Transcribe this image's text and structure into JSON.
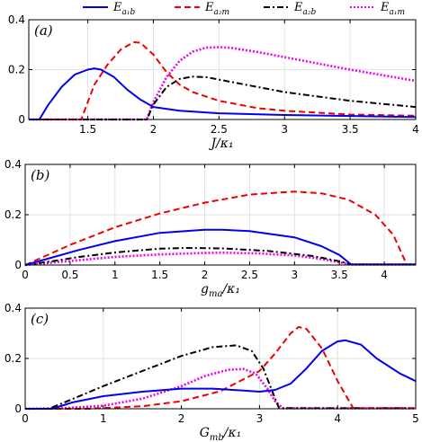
{
  "legend": [
    {
      "key": "Ea1b",
      "label": "E",
      "sub": "a₁b",
      "color": "#0000ee",
      "dash": "solid"
    },
    {
      "key": "Ea2m",
      "label": "E",
      "sub": "a₂m",
      "color": "#ee0000",
      "dash": "dashed"
    },
    {
      "key": "Ea2b",
      "label": "E",
      "sub": "a₂b",
      "color": "#000000",
      "dash": "dashdot"
    },
    {
      "key": "Ea1m",
      "label": "E",
      "sub": "a₁m",
      "color": "#ee00ee",
      "dash": "dotted"
    }
  ],
  "chart_data": [
    {
      "type": "line",
      "panel_label": "(a)",
      "xlabel": "J/κ₁",
      "xlim": [
        1.05,
        4.0
      ],
      "ylim": [
        0,
        0.4
      ],
      "xticks": [
        "1.5",
        "2",
        "2.5",
        "3",
        "3.5",
        "4"
      ],
      "xtick_values": [
        1.5,
        2,
        2.5,
        3,
        3.5,
        4
      ],
      "yticks": [
        "0",
        "0.2",
        "0.4"
      ],
      "ytick_values": [
        0,
        0.2,
        0.4
      ],
      "grid": true,
      "series": [
        {
          "name": "Ea1b",
          "x": [
            1.05,
            1.13,
            1.2,
            1.3,
            1.4,
            1.5,
            1.55,
            1.6,
            1.7,
            1.8,
            1.9,
            2.0,
            2.2,
            2.5,
            3.0,
            3.5,
            4.0
          ],
          "y": [
            0,
            0,
            0.06,
            0.13,
            0.18,
            0.2,
            0.205,
            0.2,
            0.17,
            0.12,
            0.08,
            0.05,
            0.035,
            0.025,
            0.018,
            0.014,
            0.01
          ]
        },
        {
          "name": "Ea2m",
          "x": [
            1.05,
            1.45,
            1.55,
            1.65,
            1.75,
            1.85,
            1.9,
            2.0,
            2.1,
            2.2,
            2.3,
            2.5,
            2.8,
            3.0,
            3.5,
            4.0
          ],
          "y": [
            0,
            0,
            0.14,
            0.22,
            0.28,
            0.31,
            0.308,
            0.26,
            0.19,
            0.14,
            0.11,
            0.075,
            0.045,
            0.035,
            0.02,
            0.015
          ]
        },
        {
          "name": "Ea2b",
          "x": [
            1.05,
            1.95,
            2.0,
            2.1,
            2.2,
            2.3,
            2.4,
            2.5,
            2.7,
            3.0,
            3.5,
            4.0
          ],
          "y": [
            0,
            0,
            0.06,
            0.13,
            0.163,
            0.172,
            0.17,
            0.16,
            0.14,
            0.11,
            0.075,
            0.05
          ]
        },
        {
          "name": "Ea1m",
          "x": [
            1.05,
            1.95,
            2.0,
            2.1,
            2.2,
            2.3,
            2.4,
            2.5,
            2.6,
            2.8,
            3.0,
            3.5,
            4.0
          ],
          "y": [
            0,
            0,
            0.07,
            0.17,
            0.235,
            0.272,
            0.288,
            0.29,
            0.287,
            0.27,
            0.25,
            0.2,
            0.155
          ]
        }
      ]
    },
    {
      "type": "line",
      "panel_label": "(b)",
      "xlabel": "g_ma/κ₁",
      "xlim": [
        0,
        4.35
      ],
      "ylim": [
        0,
        0.4
      ],
      "xticks": [
        "0",
        "0.5",
        "1",
        "1.5",
        "2",
        "2.5",
        "3",
        "3.5",
        "4"
      ],
      "xtick_values": [
        0,
        0.5,
        1,
        1.5,
        2,
        2.5,
        3,
        3.5,
        4
      ],
      "yticks": [
        "0",
        "0.2",
        "0.4"
      ],
      "ytick_values": [
        0,
        0.2,
        0.4
      ],
      "grid": true,
      "series": [
        {
          "name": "Ea1b",
          "x": [
            0,
            0.3,
            0.6,
            1.0,
            1.5,
            2.0,
            2.2,
            2.5,
            3.0,
            3.3,
            3.5,
            3.63,
            4.35
          ],
          "y": [
            0,
            0.03,
            0.06,
            0.095,
            0.128,
            0.14,
            0.14,
            0.135,
            0.11,
            0.075,
            0.04,
            0.002,
            0.002
          ]
        },
        {
          "name": "Ea2m",
          "x": [
            0,
            0.5,
            1.0,
            1.5,
            2.0,
            2.5,
            3.0,
            3.3,
            3.6,
            3.9,
            4.1,
            4.25,
            4.35
          ],
          "y": [
            0,
            0.08,
            0.15,
            0.205,
            0.248,
            0.28,
            0.292,
            0.285,
            0.26,
            0.2,
            0.12,
            0.002,
            0.002
          ]
        },
        {
          "name": "Ea2b",
          "x": [
            0,
            0.3,
            0.6,
            1.0,
            1.5,
            1.8,
            2.2,
            2.7,
            3.2,
            3.5,
            3.63,
            4.35
          ],
          "y": [
            0,
            0.015,
            0.032,
            0.05,
            0.065,
            0.068,
            0.066,
            0.056,
            0.036,
            0.015,
            0.002,
            0.002
          ]
        },
        {
          "name": "Ea1m",
          "x": [
            0,
            0.5,
            1.0,
            1.5,
            2.0,
            2.2,
            2.6,
            3.0,
            3.3,
            3.6,
            3.63,
            4.35
          ],
          "y": [
            0,
            0.016,
            0.032,
            0.042,
            0.048,
            0.049,
            0.046,
            0.038,
            0.024,
            0.004,
            0.002,
            0.002
          ]
        }
      ]
    },
    {
      "type": "line",
      "panel_label": "(c)",
      "xlabel": "G_mb/κ₁",
      "xlim": [
        0,
        5
      ],
      "ylim": [
        0,
        0.4
      ],
      "xticks": [
        "0",
        "1",
        "2",
        "3",
        "4",
        "5"
      ],
      "xtick_values": [
        0,
        1,
        2,
        3,
        4,
        5
      ],
      "yticks": [
        "0",
        "0.2",
        "0.4"
      ],
      "ytick_values": [
        0,
        0.2,
        0.4
      ],
      "grid": true,
      "series": [
        {
          "name": "Ea1b",
          "x": [
            0,
            0.35,
            0.6,
            1.0,
            1.5,
            2.0,
            2.4,
            2.8,
            3.0,
            3.2,
            3.4,
            3.6,
            3.8,
            4.0,
            4.1,
            4.3,
            4.5,
            4.8,
            5.0
          ],
          "y": [
            0,
            0,
            0.025,
            0.05,
            0.068,
            0.08,
            0.08,
            0.072,
            0.068,
            0.075,
            0.1,
            0.16,
            0.23,
            0.268,
            0.272,
            0.255,
            0.2,
            0.14,
            0.11
          ]
        },
        {
          "name": "Ea2m",
          "x": [
            0,
            0.8,
            1.0,
            1.5,
            2.0,
            2.5,
            3.0,
            3.2,
            3.4,
            3.5,
            3.6,
            3.8,
            4.0,
            4.2,
            5.0
          ],
          "y": [
            0,
            0,
            0.003,
            0.01,
            0.03,
            0.07,
            0.15,
            0.22,
            0.3,
            0.325,
            0.318,
            0.24,
            0.11,
            0.002,
            0.002
          ]
        },
        {
          "name": "Ea2b",
          "x": [
            0,
            0.3,
            0.5,
            1.0,
            1.5,
            2.0,
            2.4,
            2.7,
            2.9,
            3.05,
            3.15,
            3.25,
            5.0
          ],
          "y": [
            0,
            0,
            0.025,
            0.09,
            0.15,
            0.21,
            0.245,
            0.252,
            0.23,
            0.16,
            0.08,
            0.002,
            0.002
          ]
        },
        {
          "name": "Ea1m",
          "x": [
            0,
            0.5,
            1.0,
            1.5,
            2.0,
            2.3,
            2.6,
            2.8,
            2.95,
            3.1,
            3.2,
            3.3,
            5.0
          ],
          "y": [
            0,
            0.002,
            0.012,
            0.04,
            0.09,
            0.13,
            0.155,
            0.158,
            0.14,
            0.08,
            0.03,
            0.002,
            0.002
          ]
        }
      ]
    }
  ]
}
